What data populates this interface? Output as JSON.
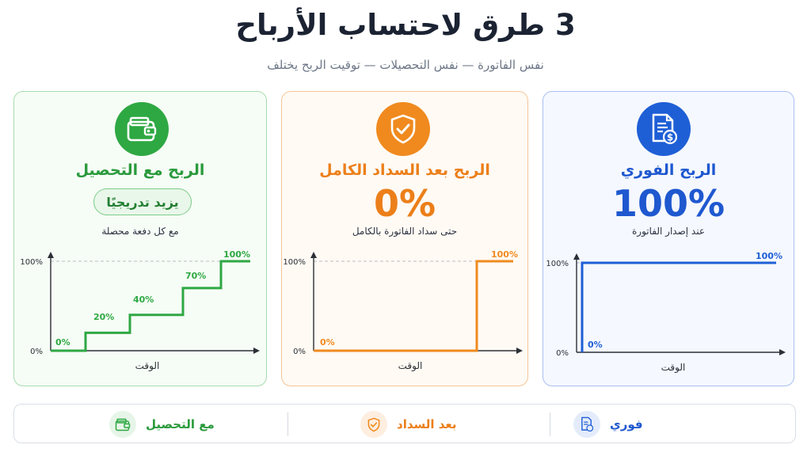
{
  "header": {
    "title": "3 طرق لاحتساب الأرباح",
    "subtitle": "نفس الفاتورة — نفس التحصيلات — توقيت الربح يختلف"
  },
  "colors": {
    "green": "#2ea843",
    "orange": "#f08a1e",
    "blue": "#1f5fd6"
  },
  "cards": {
    "collection": {
      "icon": "wallet-icon",
      "title": "الربح مع التحصيل",
      "badge": "يزيد تدريجيًا",
      "description": "مع كل دفعة محصلة"
    },
    "full_payment": {
      "icon": "shield-check-icon",
      "title": "الربح بعد السداد الكامل",
      "big_value": "0%",
      "description": "حتى سداد الفاتورة بالكامل"
    },
    "instant": {
      "icon": "invoice-dollar-icon",
      "title": "الربح الفوري",
      "big_value": "100%",
      "description": "عند إصدار الفاتورة"
    }
  },
  "chart_data": [
    {
      "type": "line",
      "name": "collection",
      "xlabel": "الوقت",
      "y_ticks": [
        "100%",
        "0%"
      ],
      "ylim": [
        0,
        100
      ],
      "shape": "step",
      "points": [
        0,
        20,
        40,
        70,
        100
      ],
      "point_labels": [
        "0%",
        "20%",
        "40%",
        "70%",
        "100%"
      ]
    },
    {
      "type": "line",
      "name": "full_payment",
      "xlabel": "الوقت",
      "y_ticks": [
        "100%",
        "0%"
      ],
      "ylim": [
        0,
        100
      ],
      "shape": "step",
      "points": [
        0,
        100
      ],
      "point_labels": [
        "0%",
        "100%"
      ]
    },
    {
      "type": "line",
      "name": "instant",
      "xlabel": "الوقت",
      "y_ticks": [
        "100%",
        "0%"
      ],
      "ylim": [
        0,
        100
      ],
      "shape": "step",
      "points": [
        0,
        100
      ],
      "point_labels": [
        "0%",
        "100%"
      ]
    }
  ],
  "legend": {
    "collection": "مع التحصيل",
    "full_payment": "بعد السداد",
    "instant": "فوري"
  }
}
